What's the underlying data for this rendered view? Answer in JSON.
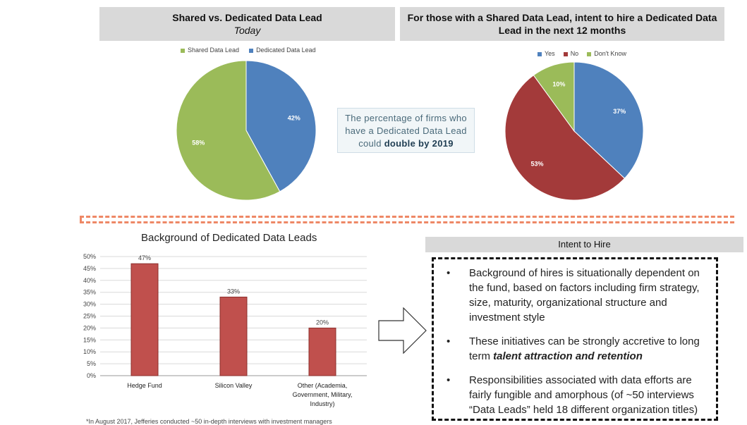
{
  "left_panel": {
    "title": "Shared vs. Dedicated Data Lead",
    "subtitle": "Today"
  },
  "right_panel": {
    "title": "For those with a Shared Data Lead, intent to hire a Dedicated Data Lead in the next 12 months"
  },
  "callout": {
    "line1": "The percentage of firms who",
    "line2": "have a Dedicated Data Lead",
    "line3_prefix": "could ",
    "line3_bold": "double by 2019"
  },
  "bar_section": {
    "title": "Background of Dedicated Data Leads"
  },
  "intent": {
    "heading": "Intent to Hire",
    "bullets": [
      {
        "text": "Background of hires is situationally dependent on the fund, based on factors including firm strategy, size, maturity, organizational structure and investment style"
      },
      {
        "text_prefix": "These initiatives can be strongly accretive to long term ",
        "text_bold": "talent attraction and retention"
      },
      {
        "text": "Responsibilities associated with data efforts are fairly fungible and amorphous (of ~50 interviews “Data Leads” held 18 different organization titles)"
      }
    ]
  },
  "footnote": "*In August 2017, Jefferies conducted ~50 in-depth interviews with investment managers",
  "chart_data": [
    {
      "type": "pie",
      "title": "Shared vs. Dedicated Data Lead",
      "subtitle": "Today",
      "legend_position": "top",
      "slices": [
        {
          "name": "Shared Data Lead",
          "value": 58,
          "label": "58%",
          "color": "#9bbb59"
        },
        {
          "name": "Dedicated Data Lead",
          "value": 42,
          "label": "42%",
          "color": "#4f81bd"
        }
      ],
      "legend_order": [
        "Shared Data Lead",
        "Dedicated Data Lead"
      ]
    },
    {
      "type": "pie",
      "title": "For those with a Shared Data Lead, intent to hire a Dedicated Data Lead in the next 12 months",
      "legend_position": "top",
      "slices": [
        {
          "name": "Yes",
          "value": 37,
          "label": "37%",
          "color": "#4f81bd"
        },
        {
          "name": "No",
          "value": 53,
          "label": "53%",
          "color": "#a33a3a"
        },
        {
          "name": "Don't Know",
          "value": 10,
          "label": "10%",
          "color": "#9bbb59"
        }
      ]
    },
    {
      "type": "bar",
      "title": "Background of Dedicated Data Leads",
      "categories": [
        "Hedge Fund",
        "Silicon Valley",
        "Other (Academia, Government, Military, Industry)"
      ],
      "category_lines": [
        [
          "Hedge Fund"
        ],
        [
          "Silicon Valley"
        ],
        [
          "Other (Academia,",
          "Government, Military,",
          "Industry)"
        ]
      ],
      "values": [
        47,
        33,
        20
      ],
      "value_labels": [
        "47%",
        "33%",
        "20%"
      ],
      "ylim": [
        0,
        50
      ],
      "yticks": [
        "0%",
        "5%",
        "10%",
        "15%",
        "20%",
        "25%",
        "30%",
        "35%",
        "40%",
        "45%",
        "50%"
      ],
      "grid": true,
      "bar_color": "#c0504d"
    }
  ]
}
